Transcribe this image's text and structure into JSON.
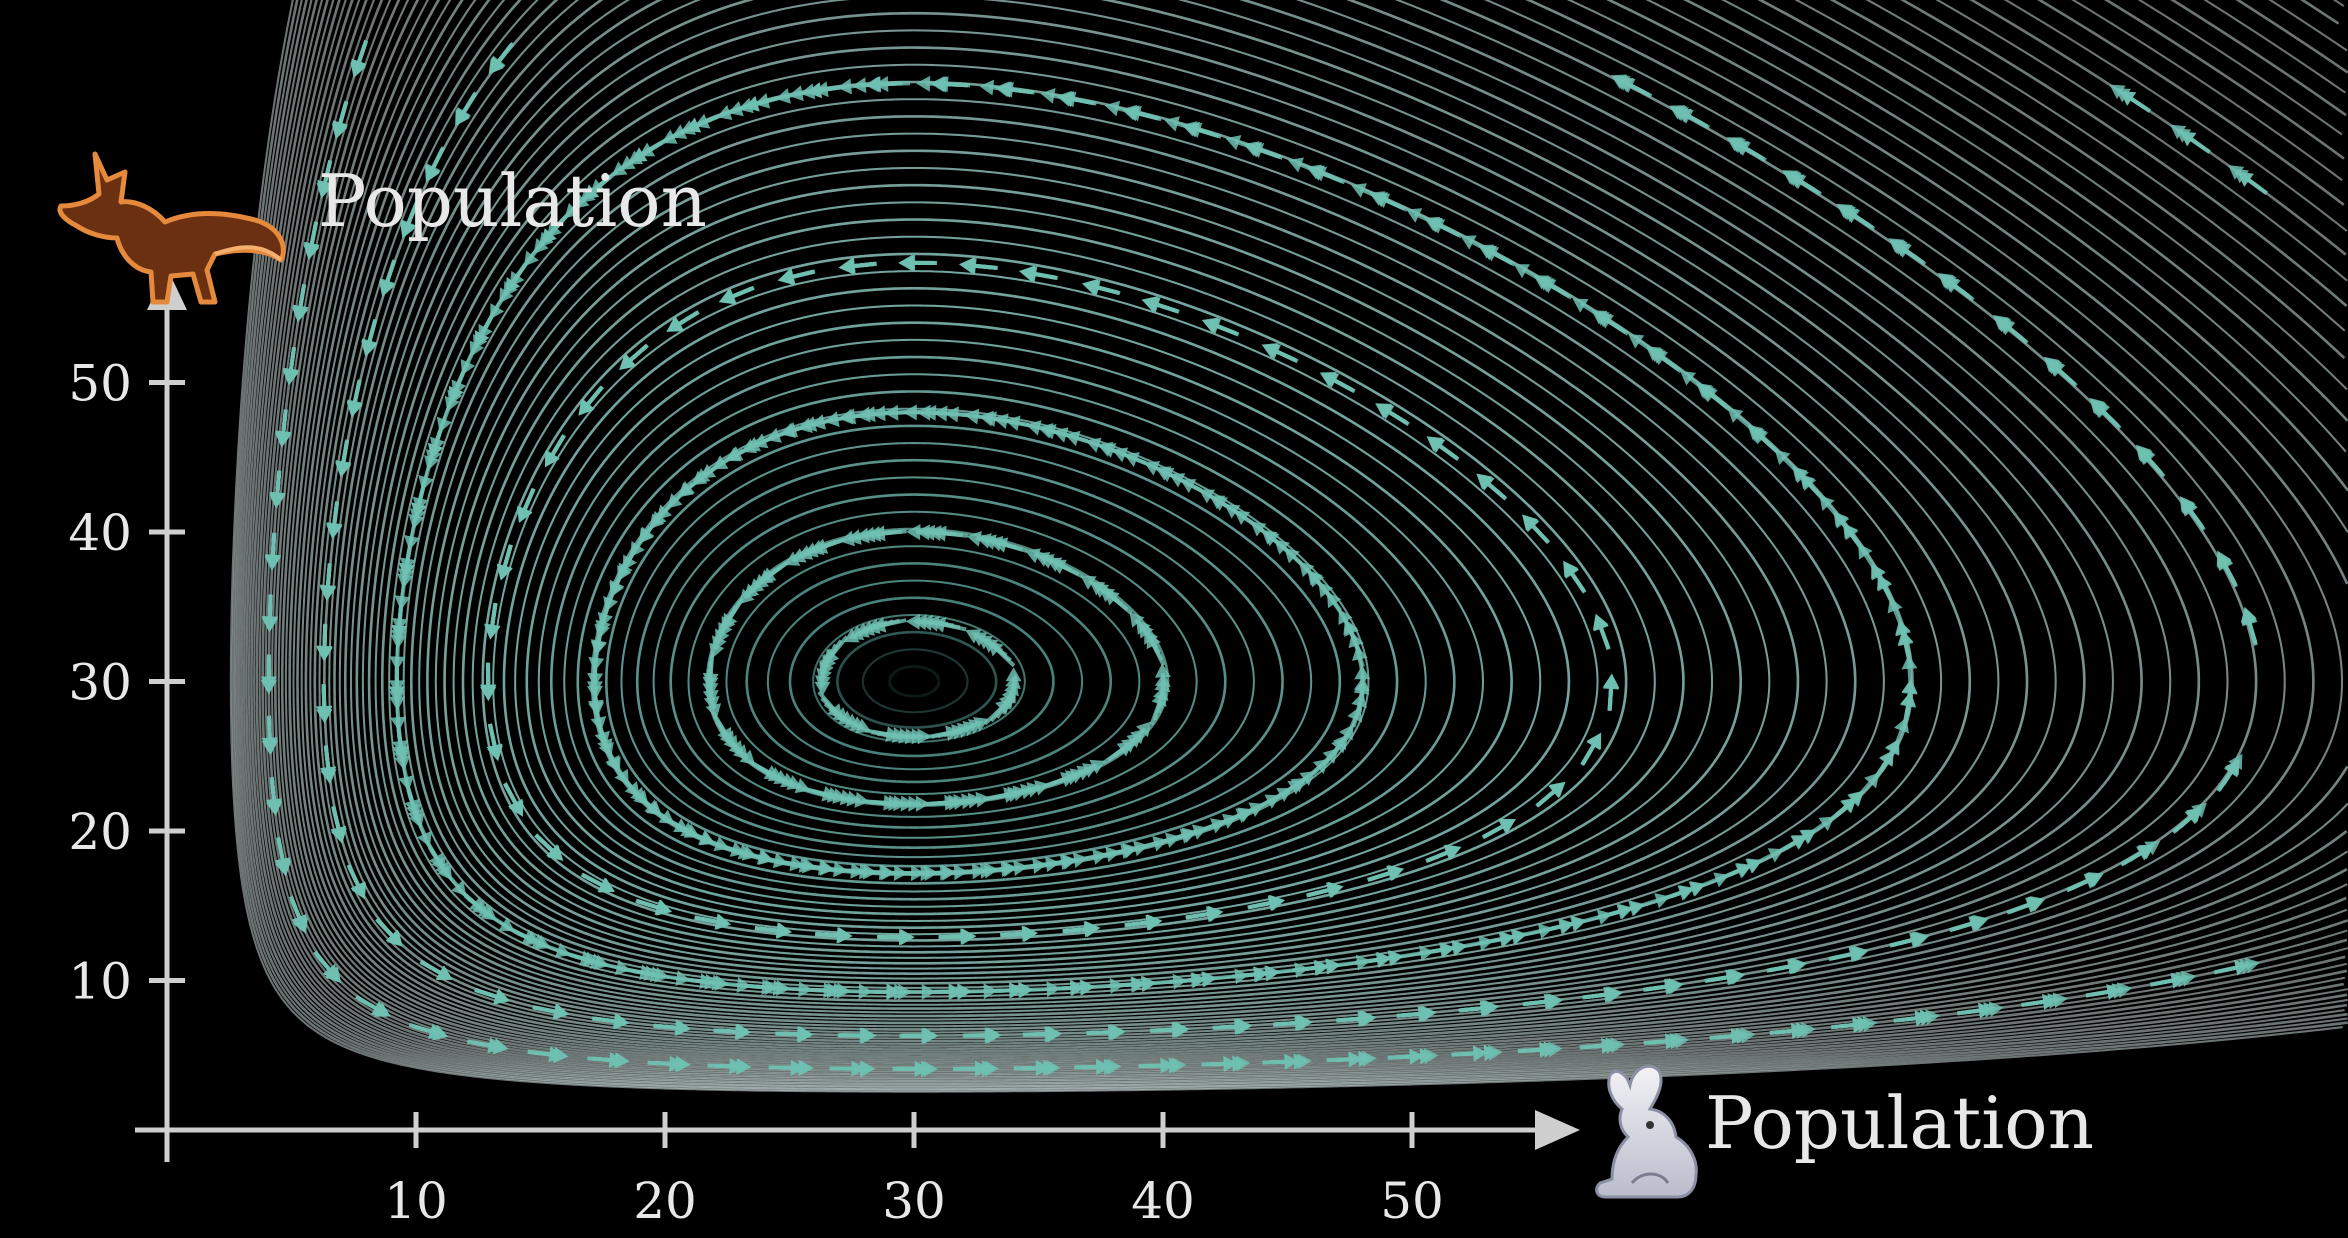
{
  "chart_data": {
    "type": "streamplot",
    "title": "",
    "xlabel": "Population",
    "ylabel": "Population",
    "x_icon": "rabbit-icon",
    "y_icon": "fox-icon",
    "xticks": [
      10,
      20,
      30,
      40,
      50
    ],
    "yticks": [
      10,
      20,
      30,
      40,
      50
    ],
    "equilibrium": {
      "x": 30,
      "y": 30
    },
    "model": "lotka-volterra",
    "grid": false,
    "colors": {
      "background": "#000000",
      "axis": "#cfcfcf",
      "stream_inner": "#5fb3a7",
      "stream_outer": "#d0e0de",
      "arrow": "#6fbfb1",
      "fox": "#d9813a",
      "rabbit": "#e8e8ee"
    }
  }
}
